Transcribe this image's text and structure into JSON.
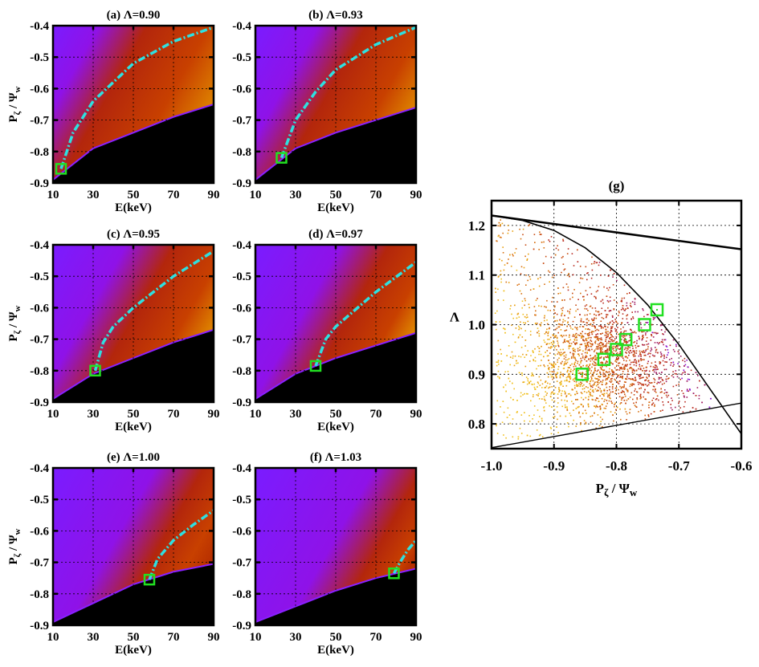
{
  "chart_data": [
    {
      "type": "heatmap",
      "title": "(a) Λ=0.90",
      "xlabel": "E(keV)",
      "ylabel_main": "P",
      "ylabel_sub1": "ζ",
      "ylabel_mid": " / Ψ",
      "ylabel_sub2": "w",
      "xlim": [
        10,
        90
      ],
      "ylim": [
        -0.9,
        -0.4
      ],
      "xticks": [
        "10",
        "30",
        "50",
        "70",
        "90"
      ],
      "yticks": [
        "-0.4",
        "-0.5",
        "-0.6",
        "-0.7",
        "-0.8",
        "-0.9"
      ],
      "lambda": 0.9,
      "marker": {
        "x": 14,
        "y": -0.855
      },
      "boundary": [
        [
          10,
          -0.89
        ],
        [
          30,
          -0.79
        ],
        [
          50,
          -0.74
        ],
        [
          70,
          -0.69
        ],
        [
          90,
          -0.65
        ]
      ],
      "curve": [
        [
          14,
          -0.855
        ],
        [
          20,
          -0.74
        ],
        [
          30,
          -0.64
        ],
        [
          50,
          -0.52
        ],
        [
          70,
          -0.45
        ],
        [
          90,
          -0.405
        ]
      ],
      "show_ylabel": true
    },
    {
      "type": "heatmap",
      "title": "(b) Λ=0.93",
      "xlabel": "E(keV)",
      "xlim": [
        10,
        90
      ],
      "ylim": [
        -0.9,
        -0.4
      ],
      "xticks": [
        "10",
        "30",
        "50",
        "70",
        "90"
      ],
      "yticks": [
        "-0.4",
        "-0.5",
        "-0.6",
        "-0.7",
        "-0.8",
        "-0.9"
      ],
      "lambda": 0.93,
      "marker": {
        "x": 23,
        "y": -0.82
      },
      "boundary": [
        [
          10,
          -0.89
        ],
        [
          30,
          -0.79
        ],
        [
          50,
          -0.74
        ],
        [
          70,
          -0.7
        ],
        [
          90,
          -0.66
        ]
      ],
      "curve": [
        [
          23,
          -0.82
        ],
        [
          30,
          -0.7
        ],
        [
          40,
          -0.61
        ],
        [
          50,
          -0.54
        ],
        [
          70,
          -0.46
        ],
        [
          90,
          -0.405
        ]
      ],
      "show_ylabel": false
    },
    {
      "type": "heatmap",
      "title": "(c) Λ=0.95",
      "xlabel": "E(keV)",
      "ylabel_main": "P",
      "ylabel_sub1": "ζ",
      "ylabel_mid": " / Ψ",
      "ylabel_sub2": "w",
      "xlim": [
        10,
        90
      ],
      "ylim": [
        -0.9,
        -0.4
      ],
      "xticks": [
        "10",
        "30",
        "50",
        "70",
        "90"
      ],
      "yticks": [
        "-0.4",
        "-0.5",
        "-0.6",
        "-0.7",
        "-0.8",
        "-0.9"
      ],
      "lambda": 0.95,
      "marker": {
        "x": 31,
        "y": -0.8
      },
      "boundary": [
        [
          10,
          -0.89
        ],
        [
          30,
          -0.81
        ],
        [
          50,
          -0.76
        ],
        [
          70,
          -0.71
        ],
        [
          90,
          -0.67
        ]
      ],
      "curve": [
        [
          31,
          -0.8
        ],
        [
          35,
          -0.71
        ],
        [
          40,
          -0.66
        ],
        [
          50,
          -0.6
        ],
        [
          70,
          -0.5
        ],
        [
          90,
          -0.42
        ]
      ],
      "show_ylabel": true
    },
    {
      "type": "heatmap",
      "title": "(d) Λ=0.97",
      "xlabel": "E(keV)",
      "xlim": [
        10,
        90
      ],
      "ylim": [
        -0.9,
        -0.4
      ],
      "xticks": [
        "10",
        "30",
        "50",
        "70",
        "90"
      ],
      "yticks": [
        "-0.4",
        "-0.5",
        "-0.6",
        "-0.7",
        "-0.8",
        "-0.9"
      ],
      "lambda": 0.97,
      "marker": {
        "x": 40,
        "y": -0.785
      },
      "boundary": [
        [
          10,
          -0.89
        ],
        [
          30,
          -0.81
        ],
        [
          50,
          -0.76
        ],
        [
          70,
          -0.72
        ],
        [
          90,
          -0.68
        ]
      ],
      "curve": [
        [
          40,
          -0.785
        ],
        [
          45,
          -0.7
        ],
        [
          50,
          -0.66
        ],
        [
          70,
          -0.55
        ],
        [
          90,
          -0.455
        ]
      ],
      "show_ylabel": false
    },
    {
      "type": "heatmap",
      "title": "(e) Λ=1.00",
      "xlabel": "E(keV)",
      "ylabel_main": "P",
      "ylabel_sub1": "ζ",
      "ylabel_mid": " / Ψ",
      "ylabel_sub2": "w",
      "xlim": [
        10,
        90
      ],
      "ylim": [
        -0.9,
        -0.4
      ],
      "xticks": [
        "10",
        "30",
        "50",
        "70",
        "90"
      ],
      "yticks": [
        "-0.4",
        "-0.5",
        "-0.6",
        "-0.7",
        "-0.8",
        "-0.9"
      ],
      "lambda": 1.0,
      "marker": {
        "x": 58,
        "y": -0.755
      },
      "boundary": [
        [
          10,
          -0.89
        ],
        [
          30,
          -0.83
        ],
        [
          50,
          -0.77
        ],
        [
          70,
          -0.73
        ],
        [
          90,
          -0.705
        ]
      ],
      "curve": [
        [
          58,
          -0.755
        ],
        [
          62,
          -0.69
        ],
        [
          70,
          -0.63
        ],
        [
          80,
          -0.58
        ],
        [
          90,
          -0.535
        ]
      ],
      "show_ylabel": true
    },
    {
      "type": "heatmap",
      "title": "(f) Λ=1.03",
      "xlabel": "E(keV)",
      "xlim": [
        10,
        90
      ],
      "ylim": [
        -0.9,
        -0.4
      ],
      "xticks": [
        "10",
        "30",
        "50",
        "70",
        "90"
      ],
      "yticks": [
        "-0.4",
        "-0.5",
        "-0.6",
        "-0.7",
        "-0.8",
        "-0.9"
      ],
      "lambda": 1.03,
      "marker": {
        "x": 79,
        "y": -0.735
      },
      "boundary": [
        [
          10,
          -0.89
        ],
        [
          30,
          -0.84
        ],
        [
          50,
          -0.79
        ],
        [
          70,
          -0.75
        ],
        [
          90,
          -0.72
        ]
      ],
      "curve": [
        [
          79,
          -0.735
        ],
        [
          82,
          -0.7
        ],
        [
          86,
          -0.66
        ],
        [
          90,
          -0.63
        ]
      ],
      "show_ylabel": false
    },
    {
      "type": "scatter",
      "title": "(g)",
      "xlabel_main": "P",
      "xlabel_sub1": "ζ",
      "xlabel_mid": " / Ψ",
      "xlabel_sub2": "w",
      "ylabel": "Λ",
      "xlim": [
        -1.0,
        -0.6
      ],
      "ylim": [
        0.75,
        1.25
      ],
      "xticks": [
        "-1.0",
        "-0.9",
        "-0.8",
        "-0.7",
        "-0.6"
      ],
      "yticks": [
        "0.8",
        "0.9",
        "1.0",
        "1.1",
        "1.2"
      ],
      "grid": true,
      "markers": [
        {
          "x": -0.855,
          "y": 0.9
        },
        {
          "x": -0.82,
          "y": 0.93
        },
        {
          "x": -0.8,
          "y": 0.95
        },
        {
          "x": -0.785,
          "y": 0.97
        },
        {
          "x": -0.755,
          "y": 1.0
        },
        {
          "x": -0.735,
          "y": 1.03
        }
      ],
      "upper_line": [
        [
          -1.0,
          1.22
        ],
        [
          -0.6,
          1.152
        ]
      ],
      "lower_line": [
        [
          -1.0,
          0.752
        ],
        [
          -0.6,
          0.842
        ]
      ],
      "boundary_curve": [
        [
          -1.0,
          1.22
        ],
        [
          -0.95,
          1.21
        ],
        [
          -0.9,
          1.19
        ],
        [
          -0.85,
          1.155
        ],
        [
          -0.8,
          1.105
        ],
        [
          -0.75,
          1.04
        ],
        [
          -0.7,
          0.96
        ],
        [
          -0.65,
          0.87
        ],
        [
          -0.6,
          0.78
        ]
      ]
    }
  ],
  "colors": {
    "purple": "#8a10ff",
    "red": "#b82a00",
    "orange": "#e8a000",
    "cyan": "#2ee0e0",
    "marker_green": "#22e022",
    "black": "#000000"
  }
}
